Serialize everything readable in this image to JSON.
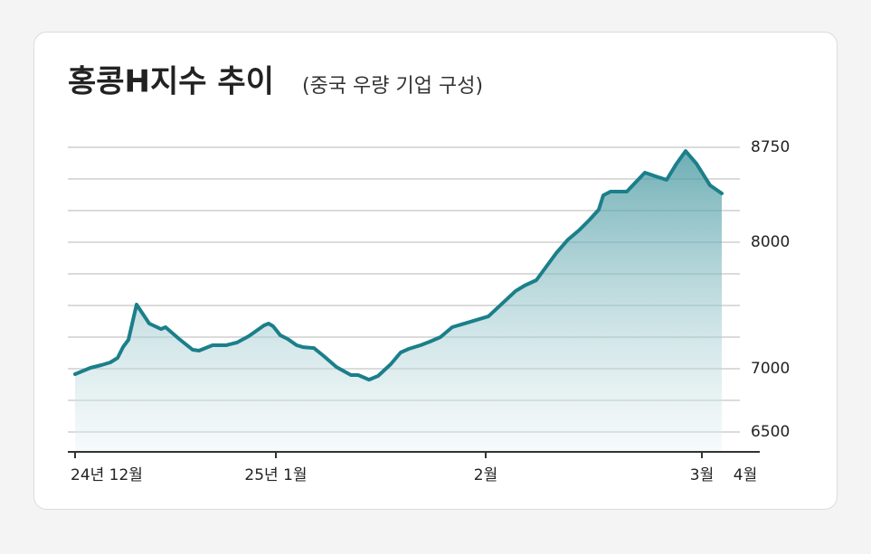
{
  "chart_data": {
    "type": "area",
    "title": "홍콩H지수 추이",
    "subtitle": "(중국 우량 기업 구성)",
    "color": "#1b7f8a",
    "x": [
      0,
      17,
      29,
      39,
      47,
      53,
      59,
      68,
      82,
      95,
      100,
      115,
      130,
      137,
      152,
      167,
      179,
      192,
      209,
      214,
      219,
      227,
      235,
      245,
      252,
      264,
      275,
      289,
      305,
      313,
      325,
      335,
      349,
      360,
      369,
      382,
      392,
      404,
      417,
      437,
      457,
      472,
      487,
      497,
      510,
      521,
      532,
      545,
      557,
      569,
      579,
      584,
      592,
      610,
      630,
      642,
      654,
      665,
      675,
      687,
      702,
      715
    ],
    "values": [
      6957,
      7007,
      7029,
      7050,
      7086,
      7171,
      7229,
      7507,
      7357,
      7314,
      7329,
      7236,
      7150,
      7143,
      7186,
      7186,
      7207,
      7257,
      7343,
      7357,
      7336,
      7264,
      7236,
      7186,
      7171,
      7164,
      7100,
      7014,
      6950,
      6950,
      6914,
      6943,
      7036,
      7129,
      7157,
      7186,
      7214,
      7250,
      7329,
      7371,
      7414,
      7514,
      7614,
      7657,
      7700,
      7807,
      7914,
      8021,
      8093,
      8179,
      8257,
      8371,
      8400,
      8400,
      8550,
      8521,
      8493,
      8621,
      8721,
      8621,
      8450,
      8386
    ],
    "xlim": [
      -8,
      757
    ],
    "xticks": [
      {
        "value": 0,
        "label": "24년 12월"
      },
      {
        "value": 222,
        "label": "25년 1월"
      },
      {
        "value": 454,
        "label": "2월"
      },
      {
        "value": 693,
        "label": "3월"
      },
      {
        "value": 741,
        "label": "4월"
      }
    ],
    "ylim": [
      6343,
      8893
    ],
    "yticks": [
      6500,
      7000,
      8000,
      8750
    ],
    "ygrid": [
      6500,
      6750,
      7000,
      7250,
      7500,
      7750,
      8000,
      8250,
      8500,
      8750
    ]
  }
}
